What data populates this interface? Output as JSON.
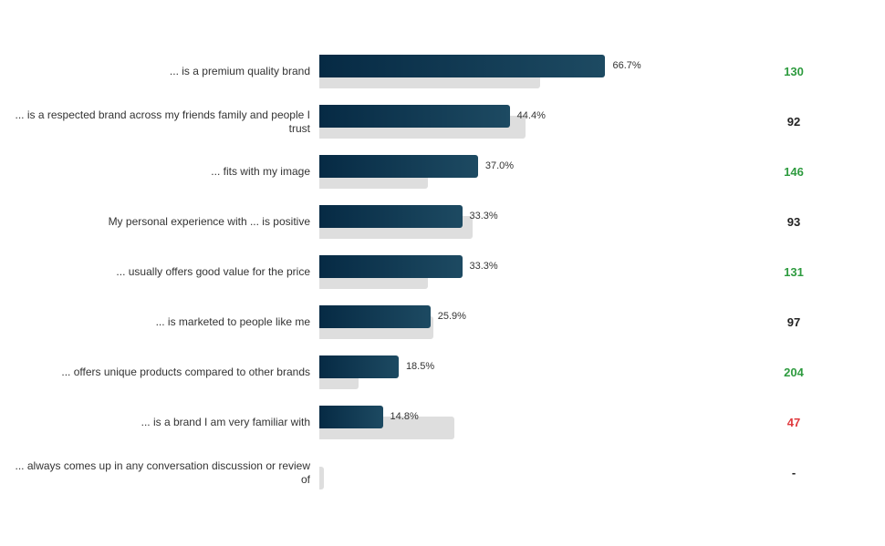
{
  "chart_data": {
    "type": "bar",
    "orientation": "horizontal",
    "categories": [
      "... is a premium quality brand",
      "... is a respected brand across my friends family and people I trust",
      "... fits with my image",
      "My personal experience with ... is positive",
      "... usually offers good value for the price",
      "... is marketed to people like me",
      "... offers unique products compared to other brands",
      "... is a brand I am very familiar with",
      "... always comes up in any conversation discussion or review of"
    ],
    "series": [
      {
        "values": [
          66.7,
          44.4,
          37.0,
          33.3,
          33.3,
          25.9,
          18.5,
          14.8,
          null
        ],
        "value_labels": [
          "66.7%",
          "44.4%",
          "37.0%",
          "33.3%",
          "33.3%",
          "25.9%",
          "18.5%",
          "14.8%",
          ""
        ],
        "color": "#0d3550"
      },
      {
        "values": [
          51.5,
          48.1,
          25.4,
          35.8,
          25.4,
          26.7,
          9.1,
          31.5,
          1.0
        ],
        "color": "#dedede"
      }
    ],
    "index": {
      "labels": [
        "130",
        "92",
        "146",
        "93",
        "131",
        "97",
        "204",
        "47",
        "-"
      ],
      "colors": [
        "#2e9b3f",
        "#222222",
        "#2e9b3f",
        "#222222",
        "#2e9b3f",
        "#222222",
        "#2e9b3f",
        "#e03a3e",
        "#222222"
      ]
    },
    "xlim": [
      0,
      100
    ],
    "grid": false,
    "legend": "none",
    "colors": {
      "bar_dark": "#062a44",
      "bar_light": "#1d4a62",
      "reference_bar": "#dedede"
    }
  }
}
